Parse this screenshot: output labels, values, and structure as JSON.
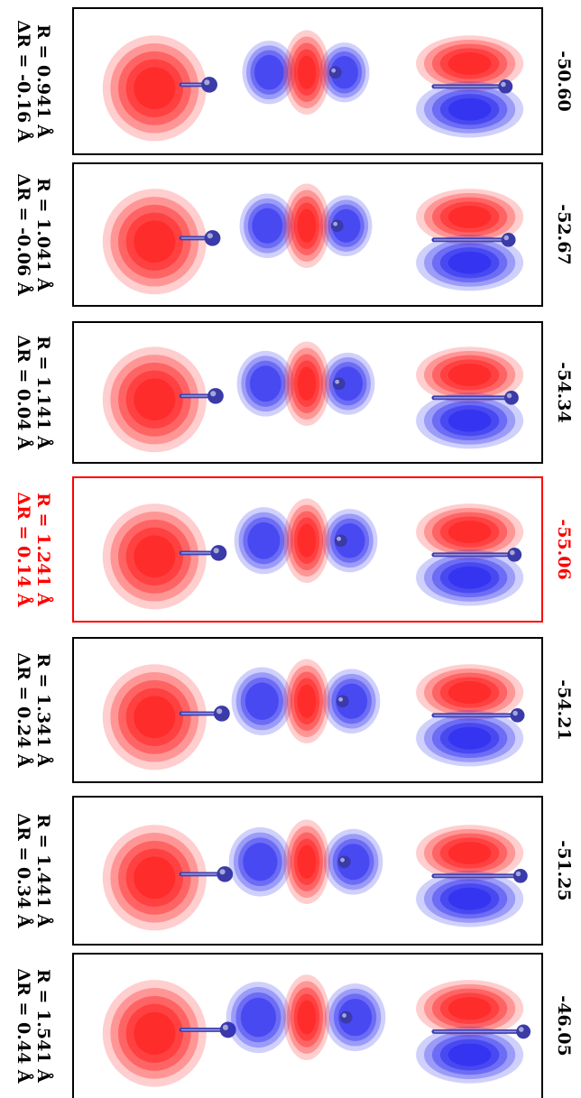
{
  "rows": [
    {
      "r_label": "R = 0.941 Å",
      "dr_label": "ΔR = -0.16 Å",
      "energy": "-50.60",
      "highlight": false,
      "sep": 0
    },
    {
      "r_label": "R = 1.041 Å",
      "dr_label": "ΔR = -0.06 Å",
      "energy": "-52.67",
      "highlight": false,
      "sep": 1
    },
    {
      "r_label": "R = 1.141 Å",
      "dr_label": "ΔR = 0.04 Å",
      "energy": "-54.34",
      "highlight": false,
      "sep": 2
    },
    {
      "r_label": "R = 1.241 Å",
      "dr_label": "ΔR = 0.14 Å",
      "energy": "-55.06",
      "highlight": true,
      "sep": 3
    },
    {
      "r_label": "R = 1.341 Å",
      "dr_label": "ΔR = 0.24 Å",
      "energy": "-54.21",
      "highlight": false,
      "sep": 4
    },
    {
      "r_label": "R = 1.441 Å",
      "dr_label": "ΔR = 0.34 Å",
      "energy": "-51.25",
      "highlight": false,
      "sep": 5
    },
    {
      "r_label": "R = 1.541 Å",
      "dr_label": "ΔR = 0.44 Å",
      "energy": "-46.05",
      "highlight": false,
      "sep": 6
    }
  ],
  "colors": {
    "positive_lobe": "#ff2020",
    "negative_lobe": "#2a2af0",
    "atom": "#3a3aa8",
    "highlight_border": "#ff0000"
  }
}
